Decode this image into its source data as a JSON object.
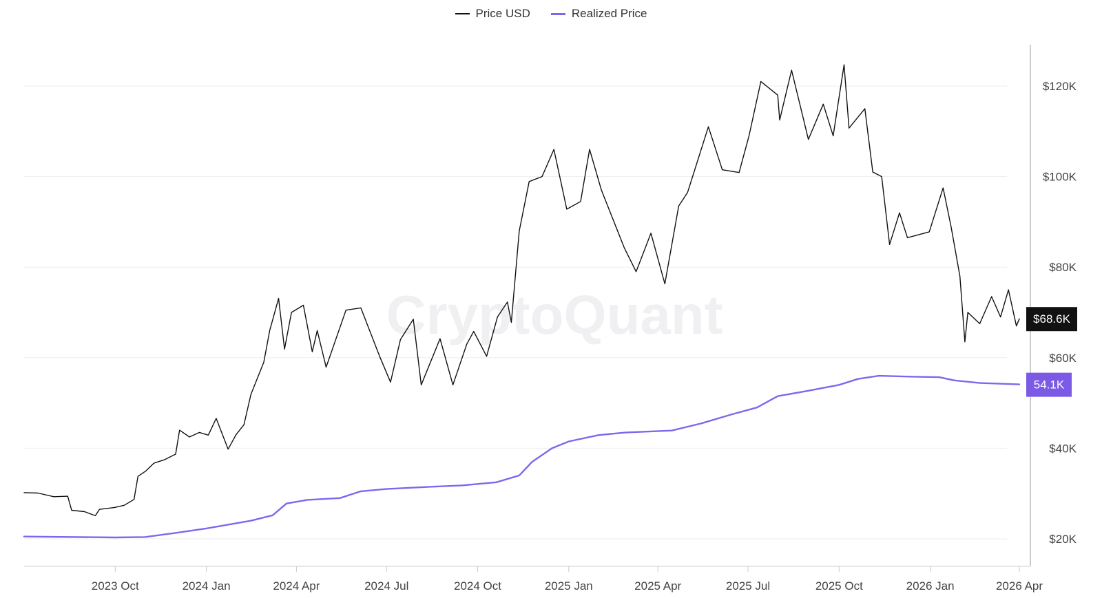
{
  "legend": {
    "price_label": "Price USD",
    "realized_label": "Realized Price"
  },
  "watermark": "CryptoQuant",
  "badges": {
    "price": "$68.6K",
    "realized": "54.1K"
  },
  "colors": {
    "price": "#111111",
    "realized": "#7b68ee",
    "price_badge_bg": "#111111",
    "realized_badge_bg": "#7b5ae6",
    "grid": "#eeeeee",
    "axis": "#cccccc"
  },
  "chart_data": {
    "type": "line",
    "title": "",
    "xlabel": "",
    "ylabel": "",
    "ylim": [
      15000,
      132000
    ],
    "xlim": [
      "2023-07-01",
      "2026-04-01"
    ],
    "x_ticks": [
      {
        "date": "2023-10-01",
        "label": "2023 Oct"
      },
      {
        "date": "2024-01-01",
        "label": "2024 Jan"
      },
      {
        "date": "2024-04-01",
        "label": "2024 Apr"
      },
      {
        "date": "2024-07-01",
        "label": "2024 Jul"
      },
      {
        "date": "2024-10-01",
        "label": "2024 Oct"
      },
      {
        "date": "2025-01-01",
        "label": "2025 Jan"
      },
      {
        "date": "2025-04-01",
        "label": "2025 Apr"
      },
      {
        "date": "2025-07-01",
        "label": "2025 Jul"
      },
      {
        "date": "2025-10-01",
        "label": "2025 Oct"
      },
      {
        "date": "2026-01-01",
        "label": "2026 Jan"
      },
      {
        "date": "2026-04-01",
        "label": "2026 Apr"
      }
    ],
    "y_ticks": [
      {
        "value": 20000,
        "label": "$20K"
      },
      {
        "value": 40000,
        "label": "$40K"
      },
      {
        "value": 60000,
        "label": "$60K"
      },
      {
        "value": 80000,
        "label": "$80K"
      },
      {
        "value": 100000,
        "label": "$100K"
      },
      {
        "value": 120000,
        "label": "$120K"
      }
    ],
    "grid": true,
    "legend_position": "top-center",
    "series": [
      {
        "name": "Price USD",
        "color": "#111111",
        "points": [
          [
            "2023-07-01",
            30200
          ],
          [
            "2023-07-15",
            30100
          ],
          [
            "2023-07-31",
            29300
          ],
          [
            "2023-08-14",
            29400
          ],
          [
            "2023-08-18",
            26300
          ],
          [
            "2023-08-31",
            26000
          ],
          [
            "2023-09-11",
            25100
          ],
          [
            "2023-09-15",
            26500
          ],
          [
            "2023-09-30",
            26900
          ],
          [
            "2023-10-10",
            27400
          ],
          [
            "2023-10-20",
            28700
          ],
          [
            "2023-10-24",
            33800
          ],
          [
            "2023-11-01",
            35000
          ],
          [
            "2023-11-09",
            36700
          ],
          [
            "2023-11-20",
            37500
          ],
          [
            "2023-12-01",
            38700
          ],
          [
            "2023-12-05",
            44000
          ],
          [
            "2023-12-15",
            42500
          ],
          [
            "2023-12-25",
            43500
          ],
          [
            "2024-01-03",
            42900
          ],
          [
            "2024-01-11",
            46600
          ],
          [
            "2024-01-23",
            39800
          ],
          [
            "2024-01-31",
            43000
          ],
          [
            "2024-02-08",
            45200
          ],
          [
            "2024-02-15",
            51900
          ],
          [
            "2024-02-28",
            59000
          ],
          [
            "2024-03-05",
            66000
          ],
          [
            "2024-03-14",
            73100
          ],
          [
            "2024-03-20",
            61900
          ],
          [
            "2024-03-27",
            70000
          ],
          [
            "2024-04-08",
            71600
          ],
          [
            "2024-04-17",
            61300
          ],
          [
            "2024-04-22",
            66000
          ],
          [
            "2024-05-01",
            57900
          ],
          [
            "2024-05-21",
            70500
          ],
          [
            "2024-06-05",
            71000
          ],
          [
            "2024-06-24",
            60300
          ],
          [
            "2024-07-05",
            54600
          ],
          [
            "2024-07-15",
            64000
          ],
          [
            "2024-07-28",
            68500
          ],
          [
            "2024-08-05",
            54000
          ],
          [
            "2024-08-24",
            64200
          ],
          [
            "2024-09-06",
            54000
          ],
          [
            "2024-09-20",
            63000
          ],
          [
            "2024-09-27",
            65800
          ],
          [
            "2024-10-10",
            60300
          ],
          [
            "2024-10-21",
            69000
          ],
          [
            "2024-10-31",
            72300
          ],
          [
            "2024-11-04",
            67800
          ],
          [
            "2024-11-12",
            88000
          ],
          [
            "2024-11-22",
            98900
          ],
          [
            "2024-12-05",
            100000
          ],
          [
            "2024-12-17",
            106000
          ],
          [
            "2024-12-30",
            92800
          ],
          [
            "2025-01-13",
            94500
          ],
          [
            "2025-01-22",
            106000
          ],
          [
            "2025-02-03",
            97000
          ],
          [
            "2025-02-26",
            84300
          ],
          [
            "2025-03-10",
            79000
          ],
          [
            "2025-03-25",
            87500
          ],
          [
            "2025-04-08",
            76300
          ],
          [
            "2025-04-22",
            93500
          ],
          [
            "2025-05-01",
            96500
          ],
          [
            "2025-05-22",
            111000
          ],
          [
            "2025-06-05",
            101500
          ],
          [
            "2025-06-22",
            100900
          ],
          [
            "2025-07-02",
            109000
          ],
          [
            "2025-07-14",
            121000
          ],
          [
            "2025-07-31",
            118000
          ],
          [
            "2025-08-02",
            112500
          ],
          [
            "2025-08-14",
            123500
          ],
          [
            "2025-08-31",
            108200
          ],
          [
            "2025-09-15",
            116000
          ],
          [
            "2025-09-25",
            109000
          ],
          [
            "2025-10-06",
            124700
          ],
          [
            "2025-10-11",
            110700
          ],
          [
            "2025-10-27",
            115000
          ],
          [
            "2025-11-04",
            101000
          ],
          [
            "2025-11-13",
            100000
          ],
          [
            "2025-11-21",
            85000
          ],
          [
            "2025-12-01",
            92000
          ],
          [
            "2025-12-09",
            86500
          ],
          [
            "2025-12-31",
            87800
          ],
          [
            "2026-01-14",
            97500
          ],
          [
            "2026-01-22",
            89000
          ],
          [
            "2026-01-31",
            78000
          ],
          [
            "2026-02-05",
            63500
          ],
          [
            "2026-02-08",
            70000
          ],
          [
            "2026-02-20",
            67500
          ],
          [
            "2026-03-04",
            73500
          ],
          [
            "2026-03-13",
            69000
          ],
          [
            "2026-03-21",
            75000
          ],
          [
            "2026-03-29",
            67000
          ],
          [
            "2026-04-01",
            68600
          ]
        ]
      },
      {
        "name": "Realized Price",
        "color": "#7b68ee",
        "points": [
          [
            "2023-07-01",
            20500
          ],
          [
            "2023-10-01",
            20300
          ],
          [
            "2023-10-31",
            20400
          ],
          [
            "2023-12-01",
            21300
          ],
          [
            "2024-01-01",
            22300
          ],
          [
            "2024-02-15",
            24000
          ],
          [
            "2024-03-08",
            25200
          ],
          [
            "2024-03-22",
            27800
          ],
          [
            "2024-04-12",
            28600
          ],
          [
            "2024-05-15",
            29000
          ],
          [
            "2024-06-05",
            30500
          ],
          [
            "2024-07-01",
            31000
          ],
          [
            "2024-08-15",
            31500
          ],
          [
            "2024-09-15",
            31800
          ],
          [
            "2024-10-20",
            32500
          ],
          [
            "2024-11-12",
            34000
          ],
          [
            "2024-11-25",
            37000
          ],
          [
            "2024-12-15",
            40000
          ],
          [
            "2025-01-01",
            41500
          ],
          [
            "2025-01-31",
            42900
          ],
          [
            "2025-02-28",
            43500
          ],
          [
            "2025-04-15",
            43900
          ],
          [
            "2025-05-15",
            45500
          ],
          [
            "2025-06-15",
            47500
          ],
          [
            "2025-07-10",
            49000
          ],
          [
            "2025-07-31",
            51500
          ],
          [
            "2025-08-31",
            52700
          ],
          [
            "2025-10-01",
            54000
          ],
          [
            "2025-10-20",
            55300
          ],
          [
            "2025-11-10",
            56000
          ],
          [
            "2025-12-15",
            55800
          ],
          [
            "2026-01-10",
            55700
          ],
          [
            "2026-01-25",
            55000
          ],
          [
            "2026-02-20",
            54400
          ],
          [
            "2026-04-01",
            54100
          ]
        ]
      }
    ]
  }
}
